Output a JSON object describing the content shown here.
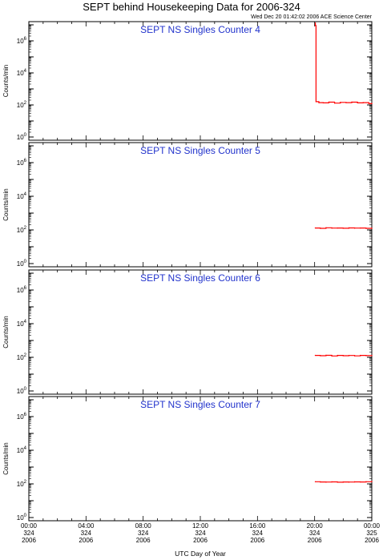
{
  "title": "SEPT behind Housekeeping Data for 2006-324",
  "stamp": "Wed Dec 20 01:42:02 2006 ACE Science Center",
  "xlabel": "UTC Day of Year",
  "colors": {
    "trace": "#ff0000",
    "panel_title": "#2233cc"
  },
  "chart_data": [
    {
      "type": "line",
      "title": "SEPT NS Singles Counter 4",
      "ylabel": "Counts/min",
      "yscale": "log",
      "ylim": [
        1,
        10000000
      ],
      "xlim": [
        0,
        24
      ],
      "series": [
        {
          "x": [
            20.05,
            20.1,
            20.3,
            20.6,
            21.0,
            21.4,
            21.8,
            22.2,
            22.6,
            23.0,
            23.4,
            23.8,
            24.0
          ],
          "y": [
            9000000,
            160,
            140,
            135,
            150,
            130,
            145,
            140,
            150,
            135,
            140,
            120,
            125
          ]
        }
      ]
    },
    {
      "type": "line",
      "title": "SEPT NS Singles Counter 5",
      "ylabel": "Counts/min",
      "yscale": "log",
      "ylim": [
        1,
        10000000
      ],
      "xlim": [
        0,
        24
      ],
      "series": [
        {
          "x": [
            20.05,
            20.4,
            20.8,
            21.2,
            21.6,
            22.0,
            22.4,
            22.8,
            23.2,
            23.6,
            24.0
          ],
          "y": [
            130,
            125,
            135,
            128,
            130,
            126,
            132,
            128,
            130,
            125,
            128
          ]
        }
      ]
    },
    {
      "type": "line",
      "title": "SEPT NS Singles Counter 6",
      "ylabel": "Counts/min",
      "yscale": "log",
      "ylim": [
        1,
        10000000
      ],
      "xlim": [
        0,
        24
      ],
      "series": [
        {
          "x": [
            20.05,
            20.4,
            20.8,
            21.2,
            21.6,
            22.0,
            22.4,
            22.8,
            23.2,
            23.6,
            24.0
          ],
          "y": [
            130,
            125,
            132,
            120,
            130,
            125,
            128,
            122,
            130,
            126,
            128
          ]
        }
      ]
    },
    {
      "type": "line",
      "title": "SEPT NS Singles Counter 7",
      "ylabel": "Counts/min",
      "yscale": "log",
      "ylim": [
        1,
        10000000
      ],
      "xlim": [
        0,
        24
      ],
      "series": [
        {
          "x": [
            20.05,
            20.4,
            20.8,
            21.2,
            21.6,
            22.0,
            22.4,
            22.8,
            23.2,
            23.6,
            24.0
          ],
          "y": [
            135,
            130,
            128,
            132,
            126,
            130,
            128,
            132,
            130,
            135,
            140
          ]
        }
      ]
    }
  ],
  "y_ticks": [
    {
      "base": "10",
      "exp": "0",
      "value": 1
    },
    {
      "base": "10",
      "exp": "2",
      "value": 100
    },
    {
      "base": "10",
      "exp": "4",
      "value": 10000
    },
    {
      "base": "10",
      "exp": "6",
      "value": 1000000
    }
  ],
  "x_ticks": [
    {
      "value": 0,
      "time": "00:00",
      "doy": "324",
      "year": "2006"
    },
    {
      "value": 4,
      "time": "04:00",
      "doy": "324",
      "year": "2006"
    },
    {
      "value": 8,
      "time": "08:00",
      "doy": "324",
      "year": "2006"
    },
    {
      "value": 12,
      "time": "12:00",
      "doy": "324",
      "year": "2006"
    },
    {
      "value": 16,
      "time": "16:00",
      "doy": "324",
      "year": "2006"
    },
    {
      "value": 20,
      "time": "20:00",
      "doy": "324",
      "year": "2006"
    },
    {
      "value": 24,
      "time": "00:00",
      "doy": "325",
      "year": "2006"
    }
  ]
}
